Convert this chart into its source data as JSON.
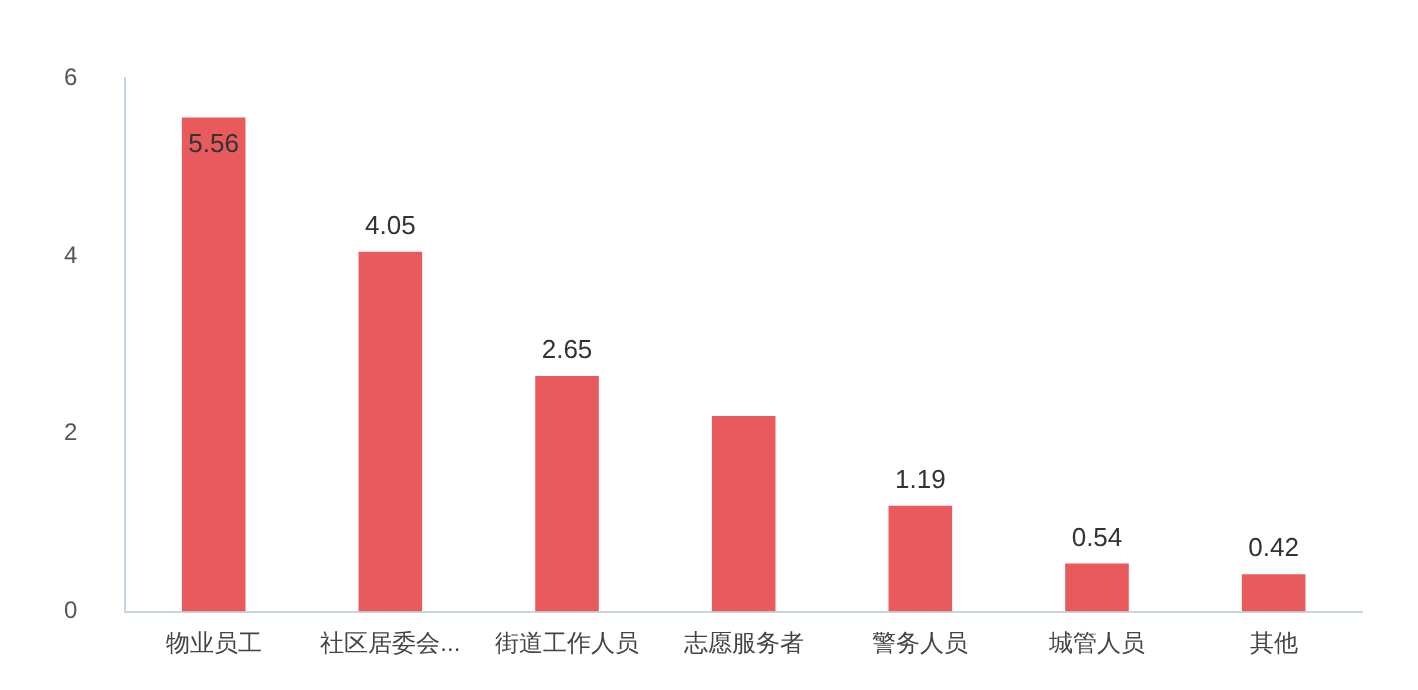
{
  "chart_data": {
    "type": "bar",
    "categories": [
      "物业员工",
      "社区居委会...",
      "街道工作人员",
      "志愿服务者",
      "警务人员",
      "城管人员",
      "其他"
    ],
    "values": [
      5.56,
      4.05,
      2.65,
      2.2,
      1.19,
      0.54,
      0.42
    ],
    "value_labels": [
      "5.56",
      "4.05",
      "2.65",
      null,
      "1.19",
      "0.54",
      "0.42"
    ],
    "color": "#e85a5c",
    "ylim": [
      0,
      6
    ],
    "yticks": [
      0,
      2,
      4,
      6
    ],
    "grid": false,
    "legend": false
  }
}
